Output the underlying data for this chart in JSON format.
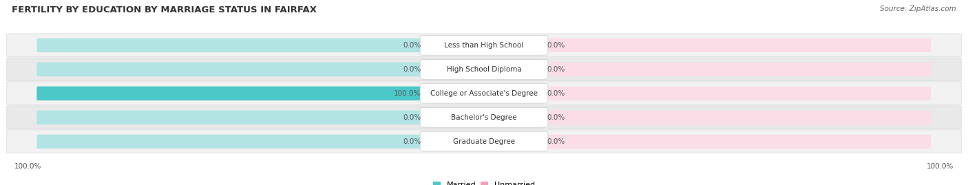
{
  "title": "FERTILITY BY EDUCATION BY MARRIAGE STATUS IN FAIRFAX",
  "source": "Source: ZipAtlas.com",
  "categories": [
    "Less than High School",
    "High School Diploma",
    "College or Associate's Degree",
    "Bachelor's Degree",
    "Graduate Degree"
  ],
  "married_values": [
    0.0,
    0.0,
    100.0,
    0.0,
    0.0
  ],
  "unmarried_values": [
    0.0,
    0.0,
    0.0,
    0.0,
    0.0
  ],
  "married_color": "#4DC8C8",
  "unmarried_color": "#F4A0B8",
  "married_track_color": "#B2E4E4",
  "unmarried_track_color": "#FADDE6",
  "row_bg_color_odd": "#F2F2F2",
  "row_bg_color_even": "#E9E9E9",
  "title_fontsize": 9.5,
  "source_fontsize": 7.5,
  "label_fontsize": 7.5,
  "value_fontsize": 7.5,
  "legend_fontsize": 8,
  "bottom_left_label": "100.0%",
  "bottom_right_label": "100.0%"
}
